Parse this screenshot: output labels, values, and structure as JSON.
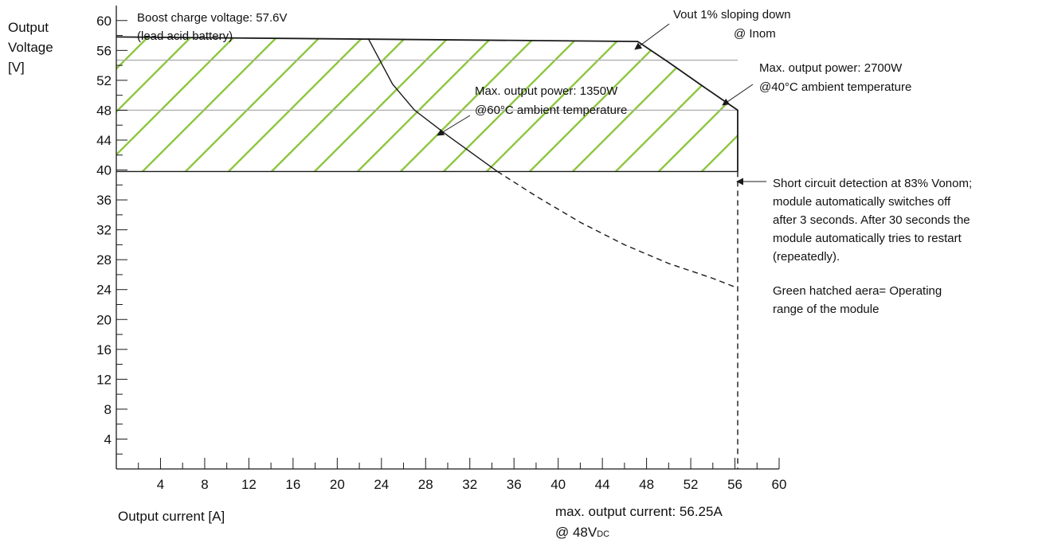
{
  "chart_data": {
    "type": "line",
    "title": "",
    "xlabel": "Output current [A]",
    "ylabel": [
      "Output",
      "Voltage",
      "[V]"
    ],
    "xlim": [
      0,
      60
    ],
    "ylim": [
      0,
      62
    ],
    "x_ticks": [
      "4",
      "8",
      "12",
      "16",
      "20",
      "24",
      "28",
      "32",
      "36",
      "40",
      "44",
      "48",
      "52",
      "56",
      "60"
    ],
    "y_ticks": [
      "4",
      "8",
      "12",
      "16",
      "20",
      "24",
      "28",
      "32",
      "36",
      "40",
      "44",
      "48",
      "52",
      "56",
      "60"
    ],
    "grid_lines_y": [
      48,
      54.7
    ],
    "series": [
      {
        "style": "solid",
        "role": "2700W limit @40°C",
        "points": [
          [
            0,
            57.8
          ],
          [
            47.2,
            57.2
          ],
          [
            50,
            54.4
          ],
          [
            53,
            51.3
          ],
          [
            56.25,
            48
          ],
          [
            56.25,
            39.8
          ]
        ]
      },
      {
        "style": "solid",
        "role": "1350W limit @60°C",
        "points": [
          [
            22.8,
            57.6
          ],
          [
            25,
            51.5
          ],
          [
            27,
            48
          ],
          [
            30,
            44.6
          ],
          [
            34.5,
            39.8
          ]
        ]
      },
      {
        "style": "dashed",
        "role": "1350W continuation below short-circuit level",
        "points": [
          [
            34.5,
            39.8
          ],
          [
            38,
            36.5
          ],
          [
            42,
            33
          ],
          [
            46,
            30
          ],
          [
            50,
            27.5
          ],
          [
            54,
            25.5
          ],
          [
            56.25,
            24.2
          ]
        ]
      },
      {
        "style": "solid",
        "role": "short-circuit detection level",
        "points": [
          [
            0,
            39.8
          ],
          [
            56.25,
            39.8
          ]
        ]
      },
      {
        "style": "dashed",
        "role": "max output current",
        "points": [
          [
            56.25,
            39.8
          ],
          [
            56.25,
            0
          ]
        ]
      }
    ],
    "operating_area": {
      "fill": "hatched",
      "hatch_color": "#8dc63f",
      "polygon": [
        [
          0,
          39.8
        ],
        [
          0,
          57.8
        ],
        [
          47.2,
          57.2
        ],
        [
          50,
          54.4
        ],
        [
          53,
          51.3
        ],
        [
          56.25,
          48
        ],
        [
          56.25,
          39.8
        ]
      ]
    },
    "annotations": [
      {
        "id": "boost",
        "lines": [
          "Boost charge voltage: 57.6V",
          "(lead acid battery)"
        ]
      },
      {
        "id": "vout",
        "lines": [
          "Vout 1% sloping down",
          "@ Inom"
        ]
      },
      {
        "id": "p2700",
        "lines": [
          "Max. output power: 2700W",
          "@40°C ambient temperature"
        ]
      },
      {
        "id": "p1350",
        "lines": [
          "Max. output power: 1350W",
          "@60°C ambient temperature"
        ]
      },
      {
        "id": "short",
        "lines": [
          "Short circuit detection at 83% Vonom;",
          "module automatically switches off",
          "after 3 seconds. After 30 seconds the",
          "module automatically tries to restart",
          "(repeatedly)."
        ]
      },
      {
        "id": "green",
        "lines": [
          "Green hatched aera= Operating",
          "range of the module"
        ]
      },
      {
        "id": "maxcur",
        "lines": [
          "max. output current: 56.25A",
          "@ 48V"
        ],
        "subscript": "DC"
      }
    ],
    "colors": {
      "line": "#1a1a1a",
      "grid": "#b0b0b0",
      "hatch": "#8dc63f"
    }
  }
}
